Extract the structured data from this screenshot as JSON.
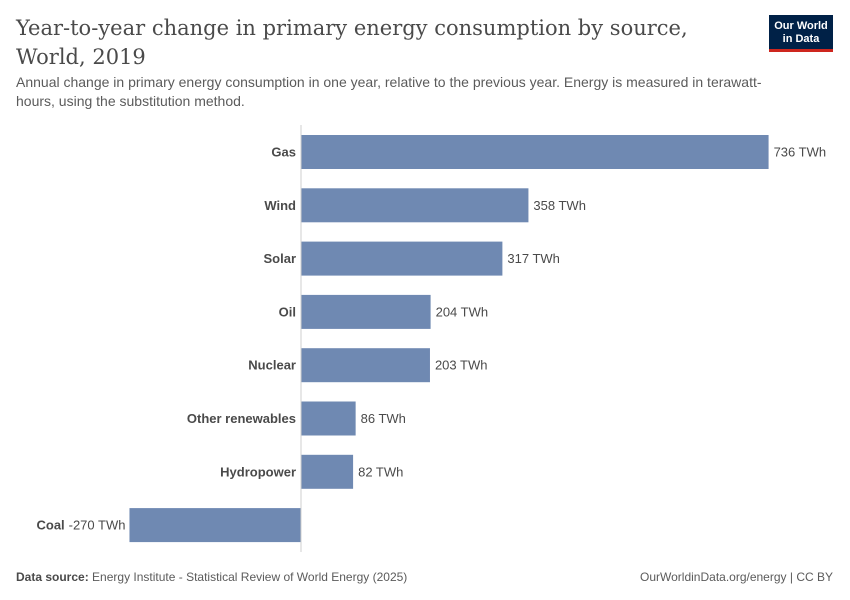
{
  "header": {
    "title": "Year-to-year change in primary energy consumption by source, World, 2019",
    "subtitle": "Annual change in primary energy consumption in one year, relative to the previous year. Energy is measured in terawatt-hours, using the substitution method."
  },
  "logo": {
    "line1": "Our World",
    "line2": "in Data"
  },
  "footer": {
    "source_label": "Data source:",
    "source_text": "Energy Institute - Statistical Review of World Energy (2025)",
    "attribution": "OurWorldinData.org/energy | CC BY"
  },
  "colors": {
    "bar": "#6f89b2",
    "axis": "#cfcfcf",
    "logo_bg": "#002147",
    "logo_accent": "#ce261e"
  },
  "chart_data": {
    "type": "bar",
    "orientation": "horizontal",
    "unit": "TWh",
    "categories": [
      "Gas",
      "Wind",
      "Solar",
      "Oil",
      "Nuclear",
      "Other renewables",
      "Hydropower",
      "Coal"
    ],
    "values": [
      736,
      358,
      317,
      204,
      203,
      86,
      82,
      -270
    ],
    "value_labels": [
      "736 TWh",
      "358 TWh",
      "317 TWh",
      "204 TWh",
      "203 TWh",
      "86 TWh",
      "82 TWh",
      "-270 TWh"
    ],
    "xlim": [
      -270,
      736
    ],
    "grid": false,
    "legend": "none"
  }
}
